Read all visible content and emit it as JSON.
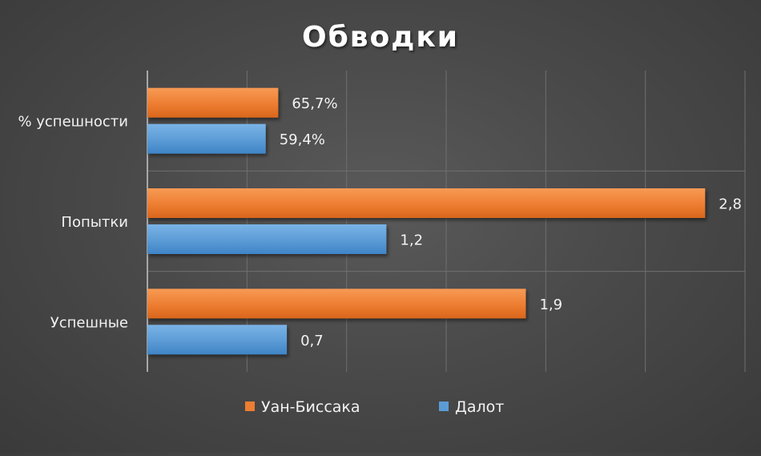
{
  "chart_data": {
    "type": "bar",
    "orientation": "horizontal",
    "title": "Обводки",
    "categories": [
      "% успешности",
      "Попытки",
      "Успешные"
    ],
    "series": [
      {
        "name": "Уан-Биссака",
        "color": "#ED7D31",
        "values": [
          0.657,
          2.8,
          1.9
        ],
        "labels": [
          "65,7%",
          "2,8",
          "1,9"
        ]
      },
      {
        "name": "Далот",
        "color": "#5B9BD5",
        "values": [
          0.594,
          1.2,
          0.7
        ],
        "labels": [
          "59,4%",
          "1,2",
          "0,7"
        ]
      }
    ],
    "xlim": [
      0,
      3
    ],
    "grid": true,
    "legend_position": "bottom"
  }
}
